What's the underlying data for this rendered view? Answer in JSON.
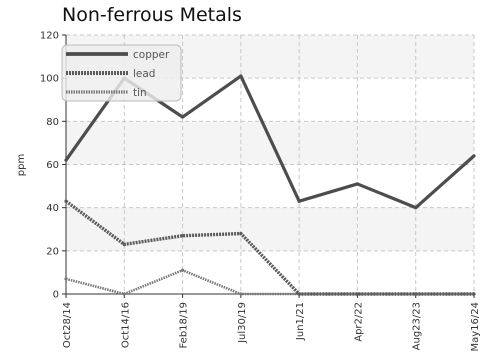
{
  "chart_data": {
    "type": "line",
    "title": "Non-ferrous Metals",
    "xlabel": "",
    "ylabel": "ppm",
    "categories": [
      "Oct28/14",
      "Oct14/16",
      "Feb18/19",
      "Jul30/19",
      "Jun1/21",
      "Apr2/22",
      "Aug23/23",
      "May16/24"
    ],
    "ylim": [
      0,
      120
    ],
    "yticks": [
      0,
      20,
      40,
      60,
      80,
      100,
      120
    ],
    "grid": true,
    "legend_position": "top-left",
    "series": [
      {
        "name": "copper",
        "values": [
          62,
          100,
          82,
          101,
          43,
          51,
          40,
          64
        ],
        "color": "#4d4d4d",
        "style": "solid"
      },
      {
        "name": "lead",
        "values": [
          43,
          23,
          27,
          28,
          0,
          0,
          0,
          0
        ],
        "color": "#5a5a5a",
        "style": "dashed"
      },
      {
        "name": "tin",
        "values": [
          7,
          0,
          11,
          0,
          0,
          0,
          0,
          0
        ],
        "color": "#777777",
        "style": "dotted"
      }
    ]
  }
}
